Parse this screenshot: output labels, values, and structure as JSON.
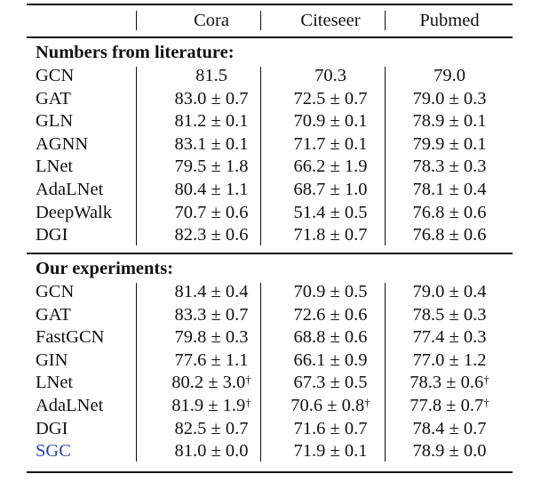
{
  "header": {
    "columns": [
      "Cora",
      "Citeseer",
      "Pubmed"
    ]
  },
  "sections": [
    {
      "title": "Numbers from literature:",
      "rows": [
        {
          "method": "GCN",
          "cells": [
            "81.5",
            "70.3",
            "79.0"
          ]
        },
        {
          "method": "GAT",
          "cells": [
            "83.0 ± 0.7",
            "72.5 ± 0.7",
            "79.0 ± 0.3"
          ]
        },
        {
          "method": "GLN",
          "cells": [
            "81.2 ± 0.1",
            "70.9 ± 0.1",
            "78.9 ± 0.1"
          ]
        },
        {
          "method": "AGNN",
          "cells": [
            "83.1 ± 0.1",
            "71.7 ± 0.1",
            "79.9 ± 0.1"
          ]
        },
        {
          "method": "LNet",
          "cells": [
            "79.5 ± 1.8",
            "66.2 ± 1.9",
            "78.3 ± 0.3"
          ]
        },
        {
          "method": "AdaLNet",
          "cells": [
            "80.4 ± 1.1",
            "68.7 ± 1.0",
            "78.1 ± 0.4"
          ]
        },
        {
          "method": "DeepWalk",
          "cells": [
            "70.7 ± 0.6",
            "51.4 ± 0.5",
            "76.8 ± 0.6"
          ]
        },
        {
          "method": "DGI",
          "cells": [
            "82.3 ± 0.6",
            "71.8 ± 0.7",
            "76.8 ± 0.6"
          ]
        }
      ]
    },
    {
      "title": "Our experiments:",
      "rows": [
        {
          "method": "GCN",
          "cells": [
            "81.4 ± 0.4",
            "70.9 ± 0.5",
            "79.0 ± 0.4"
          ]
        },
        {
          "method": "GAT",
          "cells": [
            "83.3 ± 0.7",
            "72.6 ± 0.6",
            "78.5 ± 0.3"
          ]
        },
        {
          "method": "FastGCN",
          "cells": [
            "79.8 ± 0.3",
            "68.8 ± 0.6",
            "77.4 ± 0.3"
          ]
        },
        {
          "method": "GIN",
          "cells": [
            "77.6 ± 1.1",
            "66.1 ± 0.9",
            "77.0 ± 1.2"
          ]
        },
        {
          "method": "LNet",
          "cells": [
            "80.2 ± 3.0",
            "67.3 ± 0.5",
            "78.3 ± 0.6"
          ],
          "dagger": [
            true,
            false,
            true
          ]
        },
        {
          "method": "AdaLNet",
          "cells": [
            "81.9 ± 1.9",
            "70.6 ± 0.8",
            "77.8 ± 0.7"
          ],
          "dagger": [
            true,
            true,
            true
          ]
        },
        {
          "method": "DGI",
          "cells": [
            "82.5 ± 0.7",
            "71.6 ± 0.7",
            "78.4 ± 0.7"
          ]
        },
        {
          "method": "SGC",
          "cells": [
            "81.0 ± 0.0",
            "71.9 ± 0.1",
            "78.9 ± 0.0"
          ],
          "highlight": "#2a3fb3"
        }
      ]
    }
  ],
  "dagger_symbol": "†"
}
